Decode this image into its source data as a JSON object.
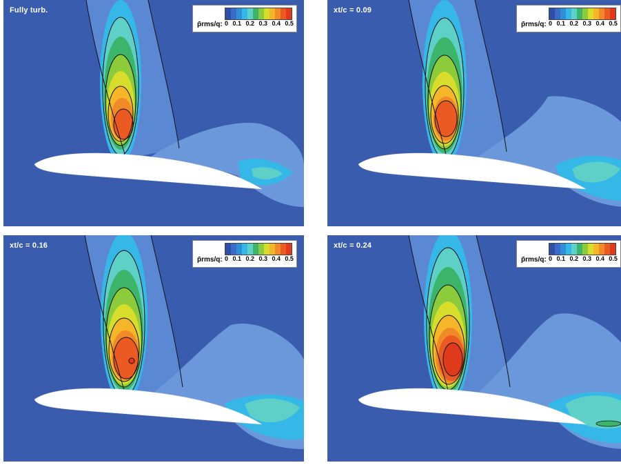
{
  "legend": {
    "title": "p̄rms/q:",
    "ticks": [
      "0",
      "0.1",
      "0.2",
      "0.3",
      "0.4",
      "0.5"
    ],
    "colors": [
      "#2e4fa6",
      "#3a6bc8",
      "#2f8fd6",
      "#35b8e8",
      "#5fd0c8",
      "#3cb46a",
      "#8ccc3c",
      "#d8dc2a",
      "#f5b62a",
      "#f08a28",
      "#ea5a22",
      "#e03a1c"
    ]
  },
  "panels": [
    {
      "label": "Fully turb."
    },
    {
      "label": "xt/c = 0.09"
    },
    {
      "label": "xt/c = 0.16"
    },
    {
      "label": "xt/c = 0.24"
    }
  ]
}
